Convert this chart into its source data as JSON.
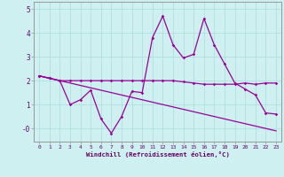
{
  "xlabel": "Windchill (Refroidissement éolien,°C)",
  "x": [
    0,
    1,
    2,
    3,
    4,
    5,
    6,
    7,
    8,
    9,
    10,
    11,
    12,
    13,
    14,
    15,
    16,
    17,
    18,
    19,
    20,
    21,
    22,
    23
  ],
  "line1_y": [
    2.2,
    2.1,
    2.0,
    1.0,
    1.2,
    1.6,
    0.4,
    -0.2,
    0.5,
    1.55,
    1.5,
    3.8,
    4.7,
    3.5,
    2.95,
    3.1,
    4.6,
    3.5,
    2.7,
    1.9,
    1.65,
    1.4,
    0.65,
    0.6
  ],
  "line2_y": [
    2.2,
    2.1,
    2.0,
    2.0,
    2.0,
    2.0,
    2.0,
    2.0,
    2.0,
    2.0,
    2.0,
    2.0,
    2.0,
    2.0,
    1.95,
    1.9,
    1.85,
    1.85,
    1.85,
    1.85,
    1.9,
    1.85,
    1.9,
    1.9
  ],
  "line3_x": [
    0,
    23
  ],
  "line3_y": [
    2.2,
    -0.1
  ],
  "bg_color": "#cef0f0",
  "line_color": "#990099",
  "grid_color": "#aadddd",
  "axis_color": "#660066",
  "spine_color": "#999999",
  "ylim": [
    -0.55,
    5.3
  ],
  "xlim": [
    -0.5,
    23.5
  ],
  "xticks": [
    0,
    1,
    2,
    3,
    4,
    5,
    6,
    7,
    8,
    9,
    10,
    11,
    12,
    13,
    14,
    15,
    16,
    17,
    18,
    19,
    20,
    21,
    22,
    23
  ],
  "yticks": [
    0,
    1,
    2,
    3,
    4,
    5
  ],
  "ytick_labels": [
    "-0",
    "1",
    "2",
    "3",
    "4",
    "5"
  ]
}
